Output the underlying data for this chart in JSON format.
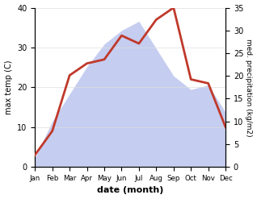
{
  "months": [
    "Jan",
    "Feb",
    "Mar",
    "Apr",
    "May",
    "Jun",
    "Jul",
    "Aug",
    "Sep",
    "Oct",
    "Nov",
    "Dec"
  ],
  "temp": [
    3,
    9,
    23,
    26,
    27,
    33,
    31,
    37,
    40,
    22,
    21,
    10
  ],
  "precip": [
    2,
    10,
    16,
    22,
    27,
    30,
    32,
    26,
    20,
    17,
    18,
    12
  ],
  "temp_color": "#c0392b",
  "precip_color_fill": "#c5cdf0",
  "temp_ylim": [
    0,
    40
  ],
  "precip_ylim": [
    0,
    35
  ],
  "temp_yticks": [
    0,
    10,
    20,
    30,
    40
  ],
  "precip_yticks": [
    0,
    5,
    10,
    15,
    20,
    25,
    30,
    35
  ],
  "xlabel": "date (month)",
  "ylabel_left": "max temp (C)",
  "ylabel_right": "med. precipitation (kg/m2)",
  "fig_width": 3.18,
  "fig_height": 2.47,
  "dpi": 100
}
